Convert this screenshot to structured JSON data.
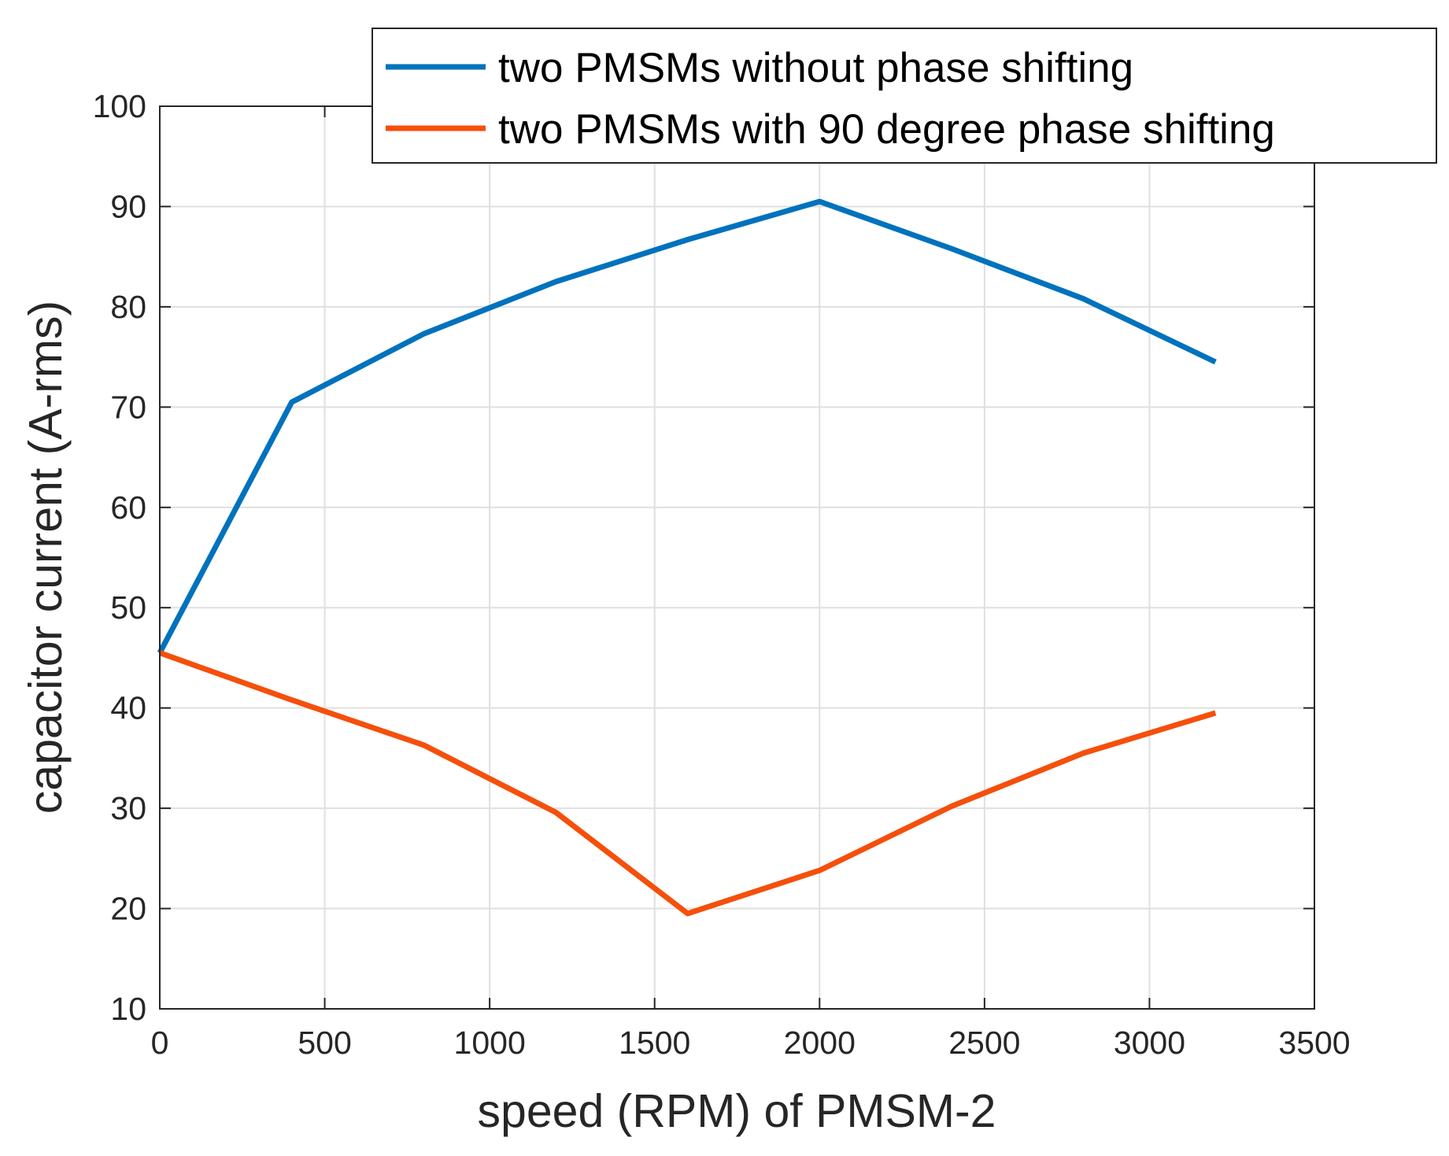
{
  "chart_data": {
    "type": "line",
    "title": "",
    "xlabel": "speed (RPM) of PMSM-2",
    "ylabel": "capacitor current (A-rms)",
    "xlim": [
      0,
      3500
    ],
    "ylim": [
      10,
      100
    ],
    "xticks": [
      0,
      500,
      1000,
      1500,
      2000,
      2500,
      3000,
      3500
    ],
    "yticks": [
      10,
      20,
      30,
      40,
      50,
      60,
      70,
      80,
      90,
      100
    ],
    "grid": true,
    "legend_position": "top-right",
    "x": [
      0,
      400,
      800,
      1200,
      1600,
      2000,
      2400,
      2800,
      3200
    ],
    "series": [
      {
        "name": "two PMSMs without phase shifting",
        "color": "#0072bd",
        "values": [
          45.5,
          70.5,
          77.3,
          82.5,
          86.7,
          90.5,
          85.8,
          80.8,
          74.5
        ]
      },
      {
        "name": "two PMSMs with 90 degree phase shifting",
        "color": "#f54f0b",
        "values": [
          45.5,
          40.8,
          36.3,
          29.6,
          19.5,
          23.8,
          30.2,
          35.5,
          39.5
        ]
      }
    ]
  }
}
